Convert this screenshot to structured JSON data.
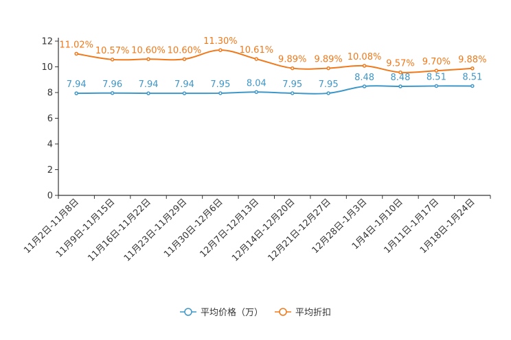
{
  "chart_data": {
    "type": "line",
    "categories": [
      "11月2日-11月8日",
      "11月9日-11月15日",
      "11月16日-11月22日",
      "11月23日-11月29日",
      "11月30日-12月6日",
      "12月7日-12月13日",
      "12月14日-12月20日",
      "12月21日-12月27日",
      "12月28日-1月3日",
      "1月4日-1月10日",
      "1月11日-1月17日",
      "1月18日-1月24日"
    ],
    "ylim": [
      0,
      12
    ],
    "yticks": [
      "0",
      "2",
      "4",
      "6",
      "8",
      "10",
      "12"
    ],
    "series": [
      {
        "name": "平均价格（万）",
        "color": "#3d96c8",
        "values": [
          7.94,
          7.96,
          7.94,
          7.94,
          7.95,
          8.04,
          7.95,
          7.95,
          8.48,
          8.48,
          8.51,
          8.51
        ],
        "labels": [
          "7.94",
          "7.96",
          "7.94",
          "7.94",
          "7.95",
          "8.04",
          "7.95",
          "7.95",
          "8.48",
          "8.48",
          "8.51",
          "8.51"
        ]
      },
      {
        "name": "平均折扣",
        "color": "#f07819",
        "values": [
          11.02,
          10.57,
          10.6,
          10.6,
          11.3,
          10.61,
          9.89,
          9.89,
          10.08,
          9.57,
          9.7,
          9.88
        ],
        "labels": [
          "11.02%",
          "10.57%",
          "10.60%",
          "10.60%",
          "11.30%",
          "10.61%",
          "9.89%",
          "9.89%",
          "10.08%",
          "9.57%",
          "9.70%",
          "9.88%"
        ]
      }
    ],
    "legend_position": "bottom-center"
  }
}
